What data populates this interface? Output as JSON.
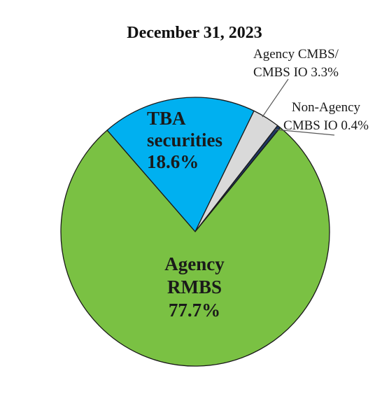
{
  "chart_data": {
    "type": "pie",
    "title": "December 31, 2023",
    "unit": "%",
    "slices": [
      {
        "label_lines": [
          "TBA",
          "securities"
        ],
        "value": 18.6,
        "value_text": "18.6%",
        "color": "#00b0f0",
        "label_style": "inside"
      },
      {
        "label_lines": [
          "Agency CMBS/",
          "CMBS IO"
        ],
        "value": 3.3,
        "value_text": "3.3%",
        "color": "#d9d9d9",
        "label_style": "callout"
      },
      {
        "label_lines": [
          "Non-Agency",
          "CMBS IO"
        ],
        "value": 0.4,
        "value_text": "0.4%",
        "color": "#1f3864",
        "label_style": "callout"
      },
      {
        "label_lines": [
          "Agency",
          "RMBS"
        ],
        "value": 77.7,
        "value_text": "77.7%",
        "color": "#7ac143",
        "label_style": "inside"
      }
    ]
  }
}
